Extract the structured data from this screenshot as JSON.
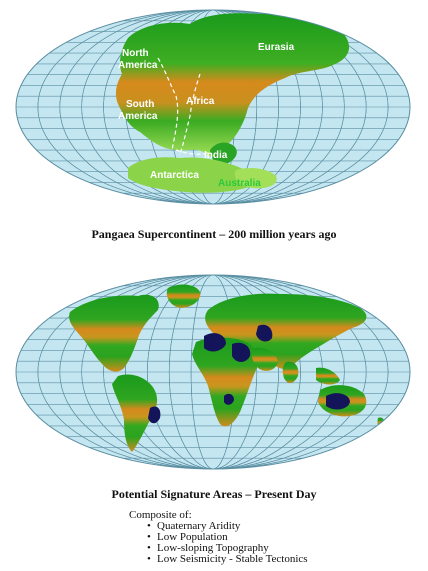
{
  "top_map": {
    "caption": "Pangaea Supercontinent – 200 million years ago",
    "labels": {
      "north_america": [
        "North",
        "America"
      ],
      "south_america": [
        "South",
        "America"
      ],
      "africa": "Africa",
      "eurasia": "Eurasia",
      "india": "India",
      "antarctica": "Antarctica",
      "australia": "Australia"
    }
  },
  "bottom_map": {
    "caption": "Potential Signature Areas – Present Day"
  },
  "legend": {
    "heading": "Composite of:",
    "items": [
      "Quaternary Aridity",
      "Low Population",
      "Low-sloping Topography",
      "Low Seismicity - Stable Tectonics"
    ]
  },
  "colors": {
    "ocean": "#c4e6f0",
    "graticule": "#5b8fa3",
    "land_green": "#1b9a1e",
    "land_orange": "#d4891a",
    "signature_areas": "#14145a",
    "label_white": "#ffffff",
    "label_green": "#2cc93a"
  }
}
